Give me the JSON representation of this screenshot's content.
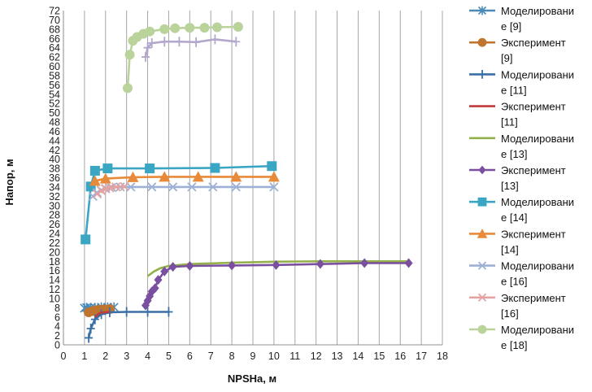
{
  "chart_data": {
    "type": "scatter",
    "xlabel": "NPSHa, м",
    "ylabel": "Напор, м",
    "xlim": [
      0,
      18
    ],
    "ylim": [
      0,
      72
    ],
    "x_ticks": [
      "0",
      "1",
      "2",
      "3",
      "4",
      "5",
      "6",
      "7",
      "8",
      "9",
      "10",
      "11",
      "12",
      "13",
      "14",
      "15",
      "16",
      "17",
      "18"
    ],
    "y_ticks": [
      "0",
      "2",
      "4",
      "6",
      "8",
      "10",
      "12",
      "14",
      "16",
      "18",
      "20",
      "22",
      "24",
      "26",
      "28",
      "30",
      "32",
      "34",
      "36",
      "38",
      "40",
      "42",
      "44",
      "46",
      "48",
      "50",
      "52",
      "54",
      "56",
      "58",
      "60",
      "62",
      "64",
      "66",
      "68",
      "70",
      "72"
    ],
    "grid": "vertical",
    "legend_position": "right",
    "series": [
      {
        "name": "Моделирование [9]",
        "color": "#4a8ab8",
        "marker": "asterisk",
        "points": [
          [
            1.0,
            7.9
          ],
          [
            1.1,
            8.0
          ],
          [
            1.3,
            8.0
          ],
          [
            1.5,
            8.0
          ],
          [
            1.8,
            8.1
          ],
          [
            2.1,
            8.1
          ],
          [
            2.4,
            8.1
          ]
        ]
      },
      {
        "name": "Эксперимент [9]",
        "color": "#c0752e",
        "marker": "circle",
        "points": [
          [
            1.2,
            7.0
          ],
          [
            1.4,
            7.3
          ],
          [
            1.6,
            7.5
          ],
          [
            1.8,
            7.6
          ],
          [
            2.0,
            7.6
          ],
          [
            2.2,
            7.7
          ]
        ]
      },
      {
        "name": "Моделирование [11]",
        "color": "#3a6fa8",
        "marker": "plus",
        "points": [
          [
            1.2,
            1.5
          ],
          [
            1.3,
            3.5
          ],
          [
            1.5,
            5.5
          ],
          [
            1.8,
            6.6
          ],
          [
            2.2,
            7.0
          ],
          [
            3.0,
            7.1
          ],
          [
            4.0,
            7.1
          ],
          [
            5.0,
            7.1
          ]
        ]
      },
      {
        "name": "Эксперимент [11]",
        "color": "#c23b3b",
        "marker": "none",
        "points": [
          [
            1.5,
            6.0
          ],
          [
            1.7,
            6.8
          ],
          [
            1.9,
            7.0
          ],
          [
            2.2,
            7.1
          ]
        ]
      },
      {
        "name": "Моделирование [13]",
        "color": "#93b04a",
        "marker": "none",
        "points": [
          [
            4.0,
            14.8
          ],
          [
            4.3,
            15.8
          ],
          [
            4.6,
            16.5
          ],
          [
            5.0,
            17.0
          ],
          [
            6.0,
            17.4
          ],
          [
            8.0,
            17.7
          ],
          [
            10.0,
            17.9
          ],
          [
            12.0,
            18.0
          ],
          [
            14.0,
            18.0
          ],
          [
            16.3,
            18.0
          ]
        ]
      },
      {
        "name": "Эксперимент [13]",
        "color": "#7a4fa0",
        "marker": "diamond",
        "points": [
          [
            3.9,
            8.5
          ],
          [
            4.0,
            9.5
          ],
          [
            4.1,
            10.5
          ],
          [
            4.2,
            11.5
          ],
          [
            4.35,
            12.2
          ],
          [
            4.5,
            14.0
          ],
          [
            4.8,
            15.8
          ],
          [
            5.2,
            16.8
          ],
          [
            6.0,
            17.0
          ],
          [
            8.0,
            17.1
          ],
          [
            10.1,
            17.2
          ],
          [
            12.2,
            17.4
          ],
          [
            14.3,
            17.6
          ],
          [
            16.4,
            17.6
          ]
        ]
      },
      {
        "name": "Моделирование [14]",
        "color": "#3aa6c4",
        "marker": "square",
        "points": [
          [
            1.05,
            22.7
          ],
          [
            1.3,
            34.1
          ],
          [
            1.5,
            37.5
          ],
          [
            2.1,
            38.0
          ],
          [
            4.1,
            38.0
          ],
          [
            7.2,
            38.1
          ],
          [
            9.9,
            38.5
          ]
        ]
      },
      {
        "name": "Эксперимент [14]",
        "color": "#e88a3a",
        "marker": "triangle",
        "points": [
          [
            1.5,
            35.3
          ],
          [
            2.0,
            35.8
          ],
          [
            3.3,
            36.1
          ],
          [
            4.8,
            36.2
          ],
          [
            6.4,
            36.2
          ],
          [
            8.2,
            36.2
          ],
          [
            10.0,
            36.2
          ]
        ]
      },
      {
        "name": "Моделирование [16]",
        "color": "#9db0d6",
        "marker": "x",
        "points": [
          [
            1.4,
            32.0
          ],
          [
            1.6,
            32.8
          ],
          [
            1.8,
            33.3
          ],
          [
            2.0,
            33.7
          ],
          [
            2.3,
            33.9
          ],
          [
            2.7,
            34.0
          ],
          [
            3.2,
            34.0
          ],
          [
            4.2,
            34.0
          ],
          [
            5.2,
            34.0
          ],
          [
            6.1,
            34.0
          ],
          [
            7.1,
            34.0
          ],
          [
            8.2,
            34.0
          ],
          [
            10.0,
            34.0
          ]
        ]
      },
      {
        "name": "Эксперимент [16]",
        "color": "#e4a3a3",
        "marker": "x",
        "points": [
          [
            1.6,
            32.5
          ],
          [
            1.8,
            33.2
          ],
          [
            2.0,
            33.6
          ],
          [
            2.2,
            33.8
          ],
          [
            2.5,
            34.0
          ],
          [
            2.9,
            34.1
          ]
        ]
      },
      {
        "name": "Моделирование [18]",
        "color": "#b9d39b",
        "marker": "circle",
        "points": [
          [
            3.05,
            55.3
          ],
          [
            3.15,
            62.5
          ],
          [
            3.3,
            65.5
          ],
          [
            3.5,
            66.3
          ],
          [
            3.8,
            67.0
          ],
          [
            4.1,
            67.5
          ],
          [
            4.8,
            68.0
          ],
          [
            5.3,
            68.2
          ],
          [
            6.0,
            68.3
          ],
          [
            6.7,
            68.3
          ],
          [
            7.3,
            68.4
          ],
          [
            8.3,
            68.5
          ]
        ]
      },
      {
        "name": "",
        "color": "#b3a8cc",
        "marker": "plus",
        "points": [
          [
            3.9,
            62.0
          ],
          [
            4.0,
            64.0
          ],
          [
            4.2,
            65.0
          ],
          [
            4.8,
            65.3
          ],
          [
            5.5,
            65.3
          ],
          [
            6.3,
            65.2
          ],
          [
            7.2,
            65.8
          ],
          [
            8.2,
            65.3
          ]
        ]
      }
    ]
  }
}
